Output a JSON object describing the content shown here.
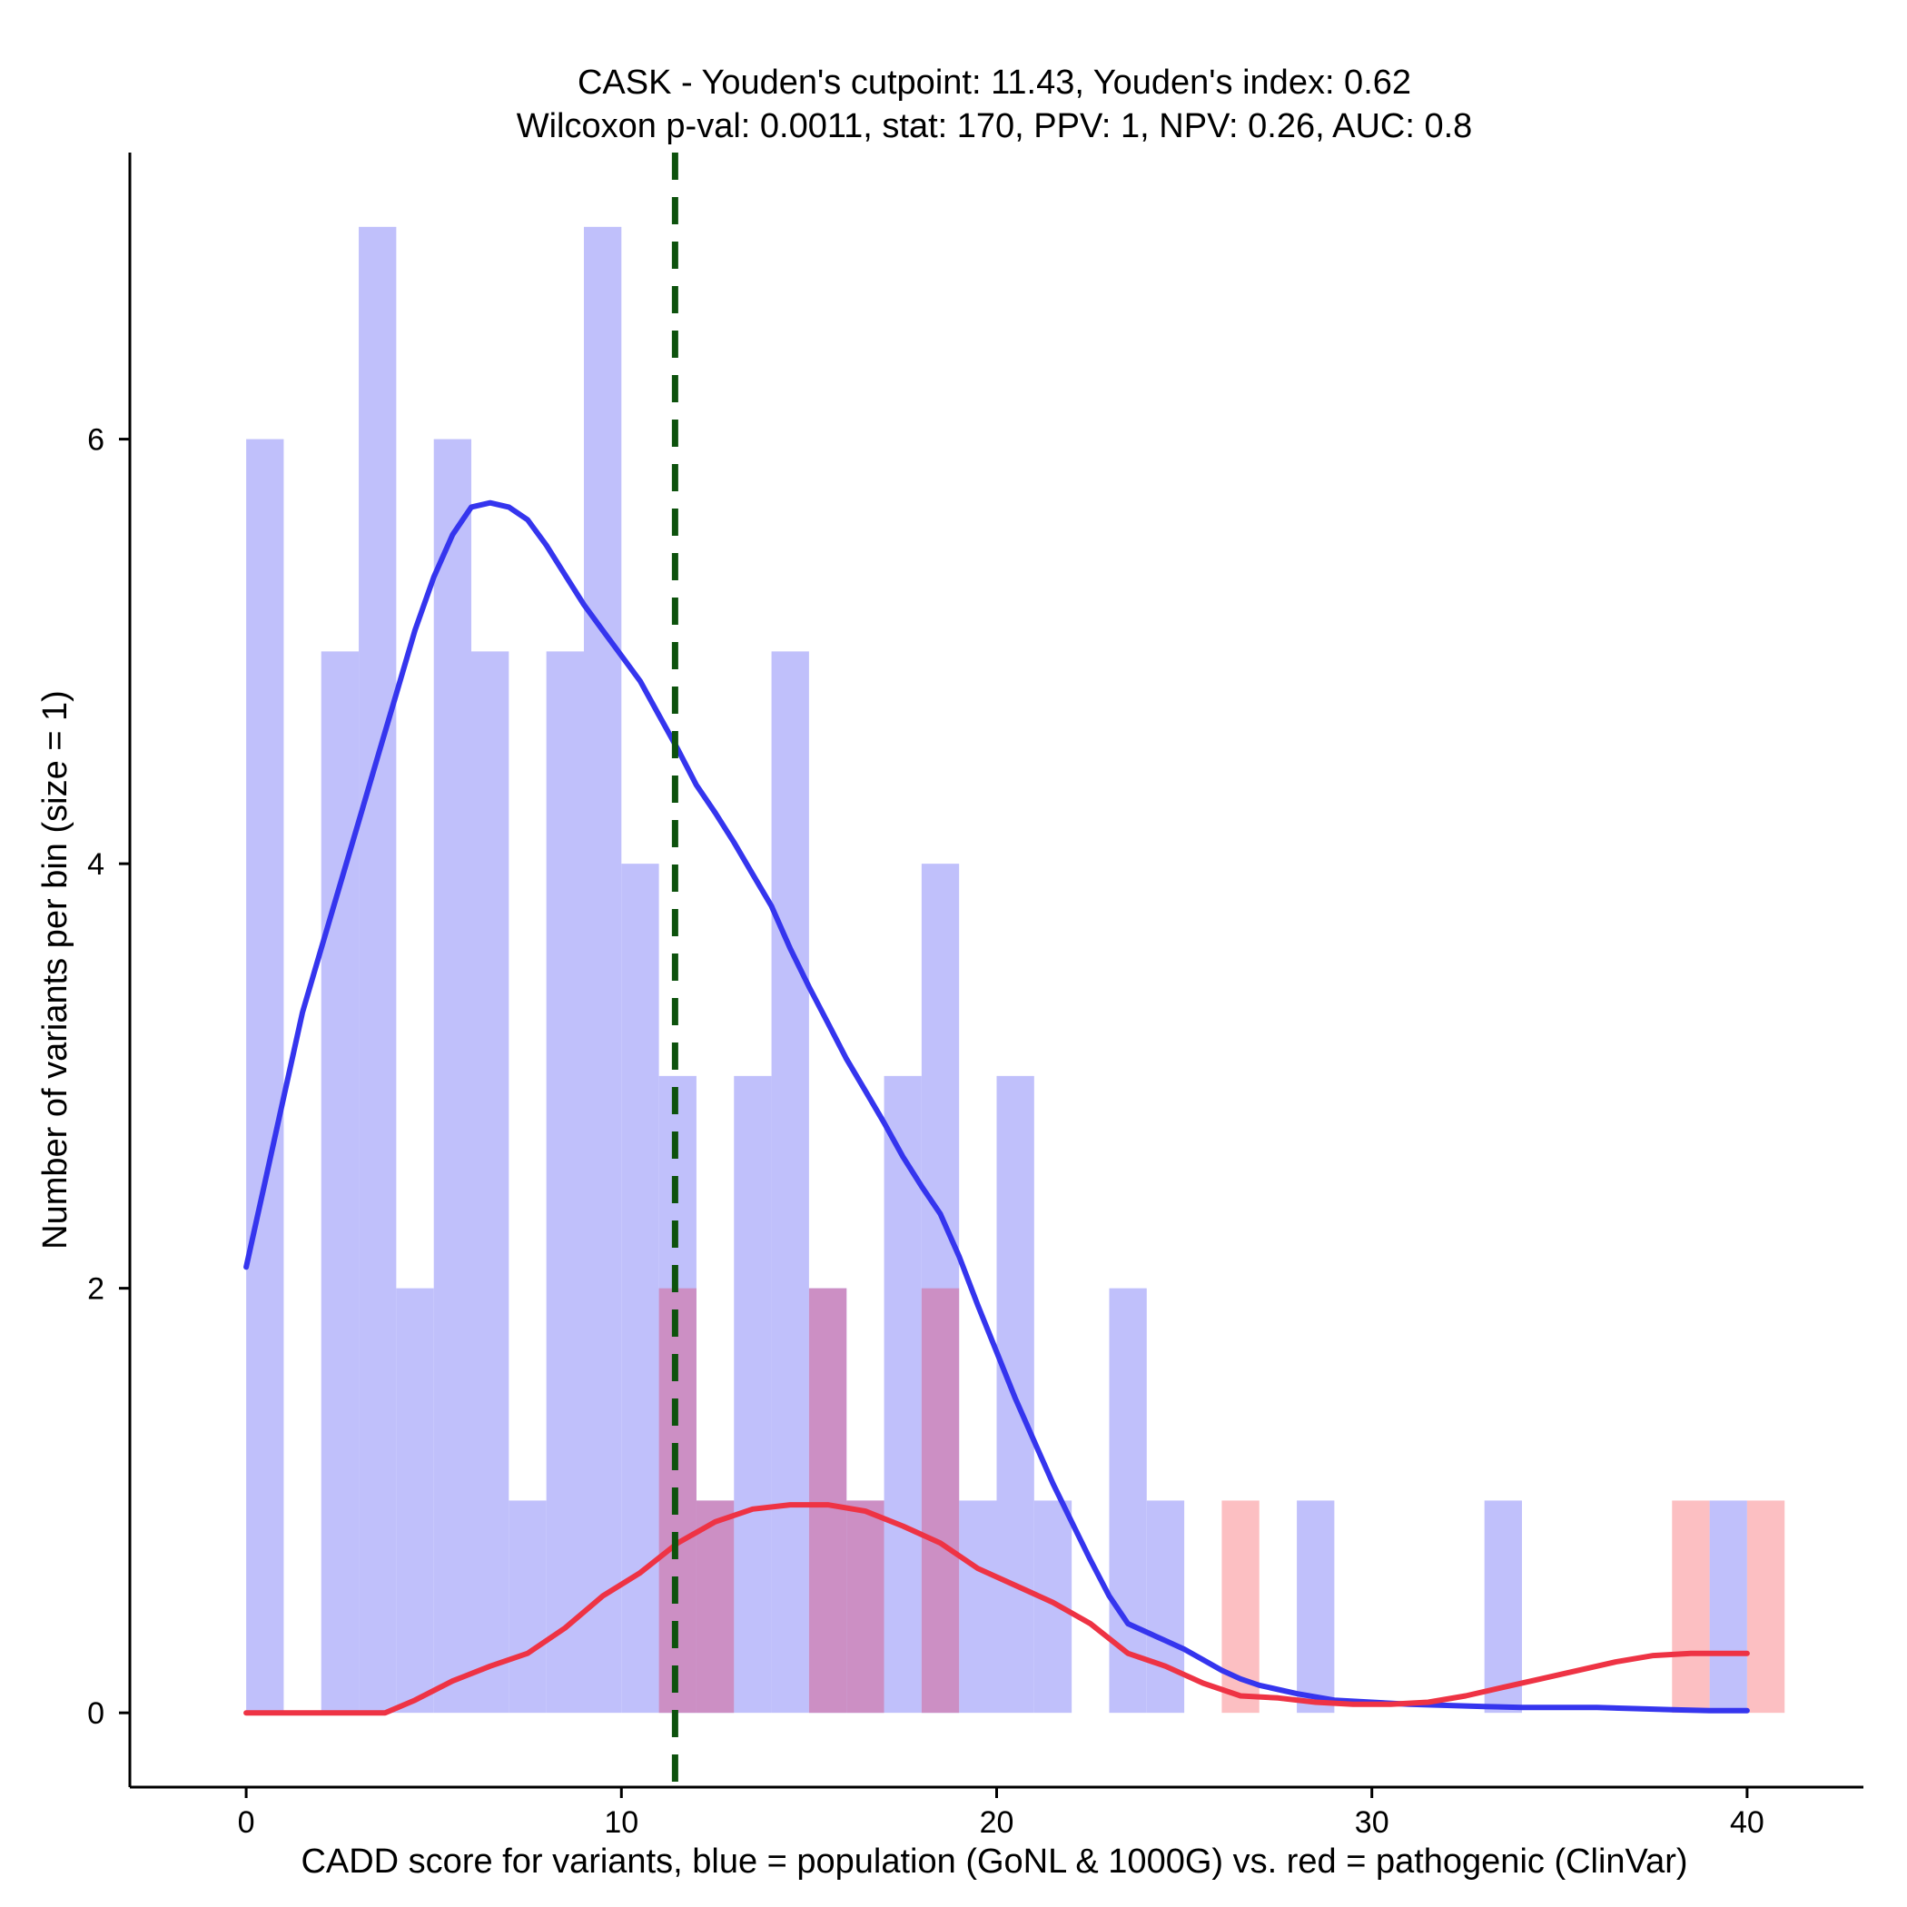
{
  "chart_data": {
    "type": "histogram-density",
    "title_line1": "CASK - Youden's cutpoint: 11.43, Youden's index: 0.62",
    "title_line2": "Wilcoxon p-val: 0.0011, stat: 170, PPV: 1, NPV: 0.26, AUC: 0.8",
    "xlabel": "CADD score for variants, blue = population (GoNL & 1000G) vs. red = pathogenic (ClinVar)",
    "ylabel": "Number of variants per bin (size = 1)",
    "xlim": [
      -3.1,
      43.1
    ],
    "ylim": [
      -0.35,
      7.35
    ],
    "x_ticks": [
      0,
      10,
      20,
      30,
      40
    ],
    "y_ticks": [
      0,
      2,
      4,
      6
    ],
    "bin_width": 1,
    "cutpoint": 11.43,
    "colors": {
      "population_bar": "#c0c0fb",
      "pathogenic_bar": "#fcbfc2",
      "overlap_bar": "#cc8fc4",
      "population_line": "#3535ee",
      "pathogenic_line": "#ee3344",
      "cutpoint_line": "#0d520d"
    },
    "series": [
      {
        "name": "population (GoNL & 1000G)",
        "bins": [
          {
            "x": 0,
            "count": 6
          },
          {
            "x": 2,
            "count": 5
          },
          {
            "x": 3,
            "count": 7
          },
          {
            "x": 4,
            "count": 2
          },
          {
            "x": 5,
            "count": 6
          },
          {
            "x": 6,
            "count": 5
          },
          {
            "x": 7,
            "count": 1
          },
          {
            "x": 8,
            "count": 5
          },
          {
            "x": 9,
            "count": 7
          },
          {
            "x": 10,
            "count": 4
          },
          {
            "x": 11,
            "count": 3
          },
          {
            "x": 12,
            "count": 1
          },
          {
            "x": 13,
            "count": 3
          },
          {
            "x": 14,
            "count": 5
          },
          {
            "x": 15,
            "count": 2
          },
          {
            "x": 16,
            "count": 1
          },
          {
            "x": 17,
            "count": 3
          },
          {
            "x": 18,
            "count": 4
          },
          {
            "x": 19,
            "count": 1
          },
          {
            "x": 20,
            "count": 3
          },
          {
            "x": 21,
            "count": 1
          },
          {
            "x": 23,
            "count": 2
          },
          {
            "x": 24,
            "count": 1
          },
          {
            "x": 28,
            "count": 1
          },
          {
            "x": 33,
            "count": 1
          },
          {
            "x": 39,
            "count": 1
          }
        ],
        "density": [
          [
            0,
            2.1
          ],
          [
            0.5,
            2.5
          ],
          [
            1,
            2.9
          ],
          [
            1.5,
            3.3
          ],
          [
            2,
            3.6
          ],
          [
            2.5,
            3.9
          ],
          [
            3,
            4.2
          ],
          [
            3.5,
            4.5
          ],
          [
            4,
            4.8
          ],
          [
            4.5,
            5.1
          ],
          [
            5,
            5.35
          ],
          [
            5.5,
            5.55
          ],
          [
            6,
            5.68
          ],
          [
            6.5,
            5.7
          ],
          [
            7,
            5.68
          ],
          [
            7.5,
            5.62
          ],
          [
            8,
            5.5
          ],
          [
            8.5,
            5.36
          ],
          [
            9,
            5.22
          ],
          [
            9.5,
            5.1
          ],
          [
            10,
            4.98
          ],
          [
            10.5,
            4.86
          ],
          [
            11,
            4.7
          ],
          [
            11.5,
            4.54
          ],
          [
            12,
            4.37
          ],
          [
            12.5,
            4.24
          ],
          [
            13,
            4.1
          ],
          [
            13.5,
            3.95
          ],
          [
            14,
            3.8
          ],
          [
            14.5,
            3.6
          ],
          [
            15,
            3.42
          ],
          [
            15.5,
            3.25
          ],
          [
            16,
            3.08
          ],
          [
            16.5,
            2.93
          ],
          [
            17,
            2.78
          ],
          [
            17.5,
            2.62
          ],
          [
            18,
            2.48
          ],
          [
            18.5,
            2.35
          ],
          [
            19,
            2.15
          ],
          [
            19.5,
            1.92
          ],
          [
            20,
            1.7
          ],
          [
            20.5,
            1.48
          ],
          [
            21,
            1.28
          ],
          [
            21.5,
            1.08
          ],
          [
            22,
            0.9
          ],
          [
            22.5,
            0.72
          ],
          [
            23,
            0.55
          ],
          [
            23.5,
            0.42
          ],
          [
            24,
            0.38
          ],
          [
            24.5,
            0.34
          ],
          [
            25,
            0.3
          ],
          [
            25.5,
            0.25
          ],
          [
            26,
            0.2
          ],
          [
            26.5,
            0.16
          ],
          [
            27,
            0.13
          ],
          [
            28,
            0.09
          ],
          [
            29,
            0.06
          ],
          [
            30,
            0.05
          ],
          [
            31,
            0.04
          ],
          [
            32,
            0.035
          ],
          [
            33,
            0.03
          ],
          [
            34,
            0.025
          ],
          [
            35,
            0.025
          ],
          [
            36,
            0.025
          ],
          [
            37,
            0.02
          ],
          [
            38,
            0.015
          ],
          [
            39,
            0.01
          ],
          [
            40,
            0.01
          ]
        ]
      },
      {
        "name": "pathogenic (ClinVar)",
        "bins": [
          {
            "x": 11,
            "count": 2
          },
          {
            "x": 12,
            "count": 1
          },
          {
            "x": 15,
            "count": 2
          },
          {
            "x": 16,
            "count": 1
          },
          {
            "x": 18,
            "count": 2
          },
          {
            "x": 26,
            "count": 1
          },
          {
            "x": 38,
            "count": 1
          },
          {
            "x": 40,
            "count": 1
          }
        ],
        "density": [
          [
            0,
            0
          ],
          [
            1,
            0
          ],
          [
            2,
            0
          ],
          [
            3,
            0
          ],
          [
            3.7,
            0.0
          ],
          [
            4.5,
            0.06
          ],
          [
            5.5,
            0.15
          ],
          [
            6.5,
            0.22
          ],
          [
            7.5,
            0.28
          ],
          [
            8.5,
            0.4
          ],
          [
            9.5,
            0.55
          ],
          [
            10.5,
            0.66
          ],
          [
            11.5,
            0.8
          ],
          [
            12.5,
            0.9
          ],
          [
            13.5,
            0.96
          ],
          [
            14.5,
            0.98
          ],
          [
            15.5,
            0.98
          ],
          [
            16.5,
            0.95
          ],
          [
            17.5,
            0.88
          ],
          [
            18.5,
            0.8
          ],
          [
            19.5,
            0.68
          ],
          [
            20.5,
            0.6
          ],
          [
            21.5,
            0.52
          ],
          [
            22.5,
            0.42
          ],
          [
            23.5,
            0.28
          ],
          [
            24.5,
            0.22
          ],
          [
            25.5,
            0.14
          ],
          [
            26.5,
            0.08
          ],
          [
            27.5,
            0.07
          ],
          [
            28.5,
            0.05
          ],
          [
            29.5,
            0.04
          ],
          [
            30.5,
            0.04
          ],
          [
            31.5,
            0.05
          ],
          [
            32.5,
            0.08
          ],
          [
            33.5,
            0.12
          ],
          [
            34.5,
            0.16
          ],
          [
            35.5,
            0.2
          ],
          [
            36.5,
            0.24
          ],
          [
            37.5,
            0.27
          ],
          [
            38.5,
            0.28
          ],
          [
            39.5,
            0.28
          ],
          [
            40,
            0.28
          ]
        ]
      }
    ]
  }
}
